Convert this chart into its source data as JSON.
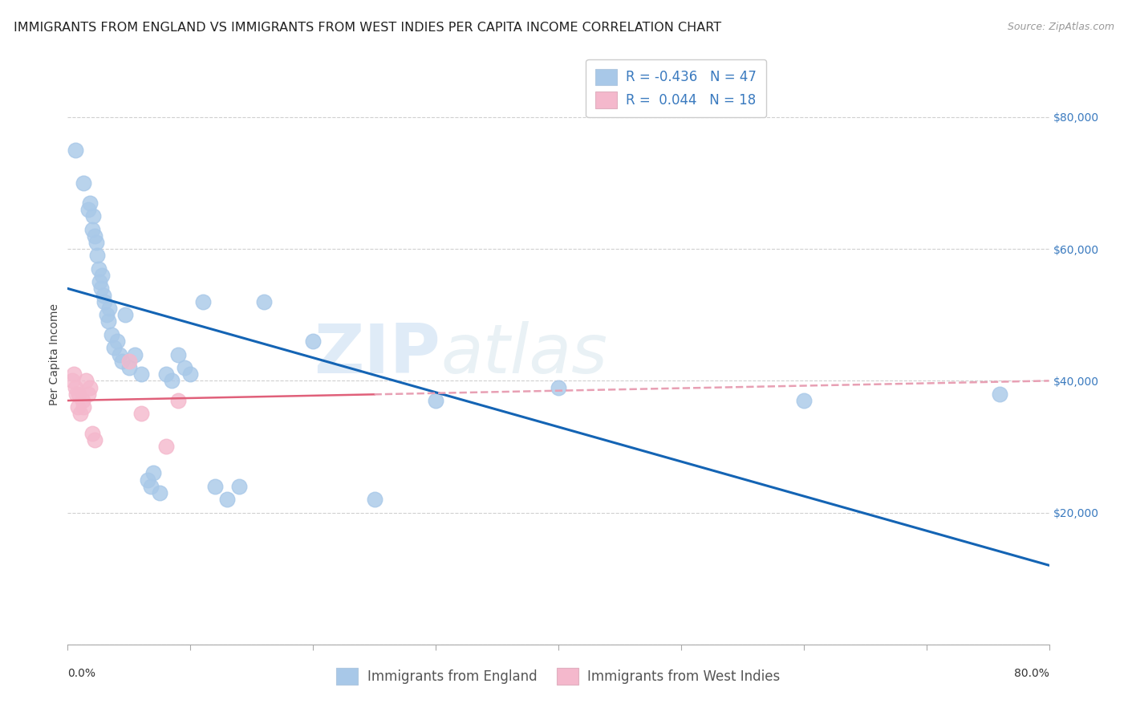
{
  "title": "IMMIGRANTS FROM ENGLAND VS IMMIGRANTS FROM WEST INDIES PER CAPITA INCOME CORRELATION CHART",
  "source": "Source: ZipAtlas.com",
  "ylabel": "Per Capita Income",
  "yticks": [
    0,
    20000,
    40000,
    60000,
    80000
  ],
  "ytick_labels": [
    "",
    "$20,000",
    "$40,000",
    "$60,000",
    "$80,000"
  ],
  "xlim": [
    0.0,
    0.8
  ],
  "ylim": [
    0,
    88000
  ],
  "watermark_text": "ZIP",
  "watermark_text2": "atlas",
  "legend_r_england": "-0.436",
  "legend_n_england": "47",
  "legend_r_wi": "0.044",
  "legend_n_wi": "18",
  "england_color": "#a8c8e8",
  "england_line_color": "#1464b4",
  "wi_color": "#f4b8cc",
  "wi_line_color": "#e0607a",
  "wi_line_dashed_color": "#e8a0b4",
  "england_x": [
    0.006,
    0.013,
    0.017,
    0.018,
    0.02,
    0.021,
    0.022,
    0.023,
    0.024,
    0.025,
    0.026,
    0.027,
    0.028,
    0.029,
    0.03,
    0.032,
    0.033,
    0.034,
    0.036,
    0.038,
    0.04,
    0.042,
    0.044,
    0.047,
    0.05,
    0.055,
    0.06,
    0.065,
    0.068,
    0.07,
    0.075,
    0.08,
    0.085,
    0.09,
    0.095,
    0.1,
    0.11,
    0.12,
    0.13,
    0.14,
    0.16,
    0.2,
    0.25,
    0.3,
    0.4,
    0.6,
    0.76
  ],
  "england_y": [
    75000,
    70000,
    66000,
    67000,
    63000,
    65000,
    62000,
    61000,
    59000,
    57000,
    55000,
    54000,
    56000,
    53000,
    52000,
    50000,
    49000,
    51000,
    47000,
    45000,
    46000,
    44000,
    43000,
    50000,
    42000,
    44000,
    41000,
    25000,
    24000,
    26000,
    23000,
    41000,
    40000,
    44000,
    42000,
    41000,
    52000,
    24000,
    22000,
    24000,
    52000,
    46000,
    22000,
    37000,
    39000,
    37000,
    38000
  ],
  "wi_x": [
    0.004,
    0.005,
    0.006,
    0.007,
    0.008,
    0.009,
    0.01,
    0.012,
    0.013,
    0.015,
    0.017,
    0.018,
    0.02,
    0.022,
    0.05,
    0.06,
    0.08,
    0.09
  ],
  "wi_y": [
    40000,
    41000,
    39000,
    38000,
    36000,
    38000,
    35000,
    37000,
    36000,
    40000,
    38000,
    39000,
    32000,
    31000,
    43000,
    35000,
    30000,
    37000
  ],
  "england_trend_x": [
    0.0,
    0.8
  ],
  "england_trend_y": [
    54000,
    12000
  ],
  "wi_trend_x": [
    0.0,
    0.8
  ],
  "wi_trend_y": [
    37000,
    40000
  ],
  "grid_color": "#d0d0d0",
  "grid_linestyle": "--",
  "background_color": "#ffffff",
  "title_fontsize": 11.5,
  "source_fontsize": 9,
  "axis_label_fontsize": 10,
  "tick_fontsize": 10,
  "legend_fontsize": 12,
  "scatter_size": 180,
  "scatter_alpha": 0.8
}
